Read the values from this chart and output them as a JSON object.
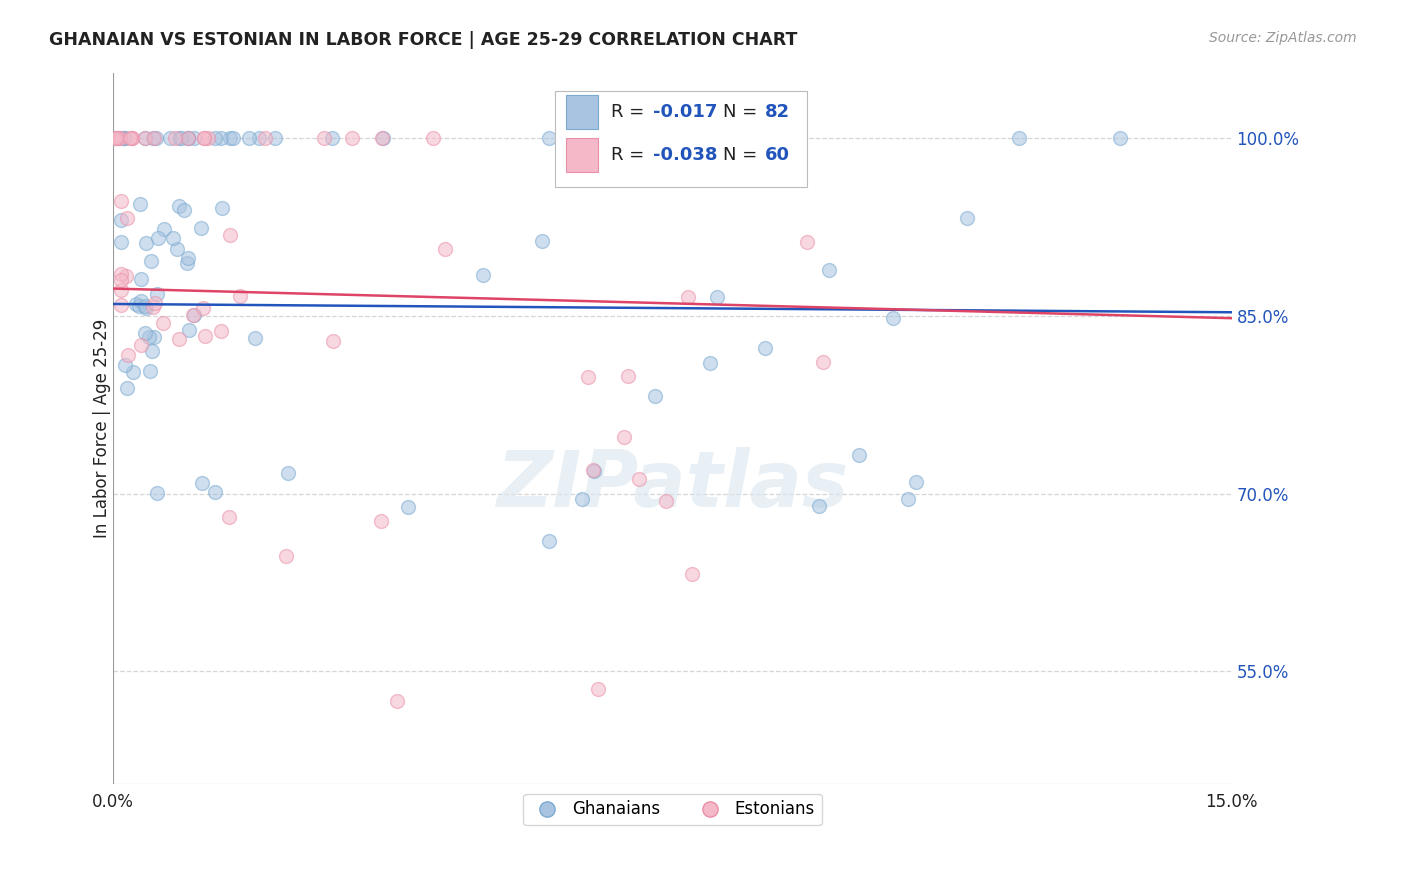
{
  "title": "GHANAIAN VS ESTONIAN IN LABOR FORCE | AGE 25-29 CORRELATION CHART",
  "source": "Source: ZipAtlas.com",
  "ylabel": "In Labor Force | Age 25-29",
  "yticks": [
    0.55,
    0.7,
    0.85,
    1.0
  ],
  "ytick_labels": [
    "55.0%",
    "70.0%",
    "85.0%",
    "100.0%"
  ],
  "xlim": [
    0.0,
    0.15
  ],
  "ylim": [
    0.455,
    1.055
  ],
  "legend_blue_R": "-0.017",
  "legend_blue_N": "82",
  "legend_pink_R": "-0.038",
  "legend_pink_N": "60",
  "blue_color": "#a8c4e0",
  "blue_edge": "#7aaad0",
  "pink_color": "#f4b8c8",
  "pink_edge": "#e890a8",
  "blue_line_color": "#2255bb",
  "pink_line_color": "#dd4466",
  "text_color_dark": "#222222",
  "text_color_blue": "#2255bb",
  "background_color": "#ffffff",
  "grid_color": "#cccccc",
  "watermark": "ZIPatlas",
  "marker_size": 100,
  "marker_alpha": 0.55
}
